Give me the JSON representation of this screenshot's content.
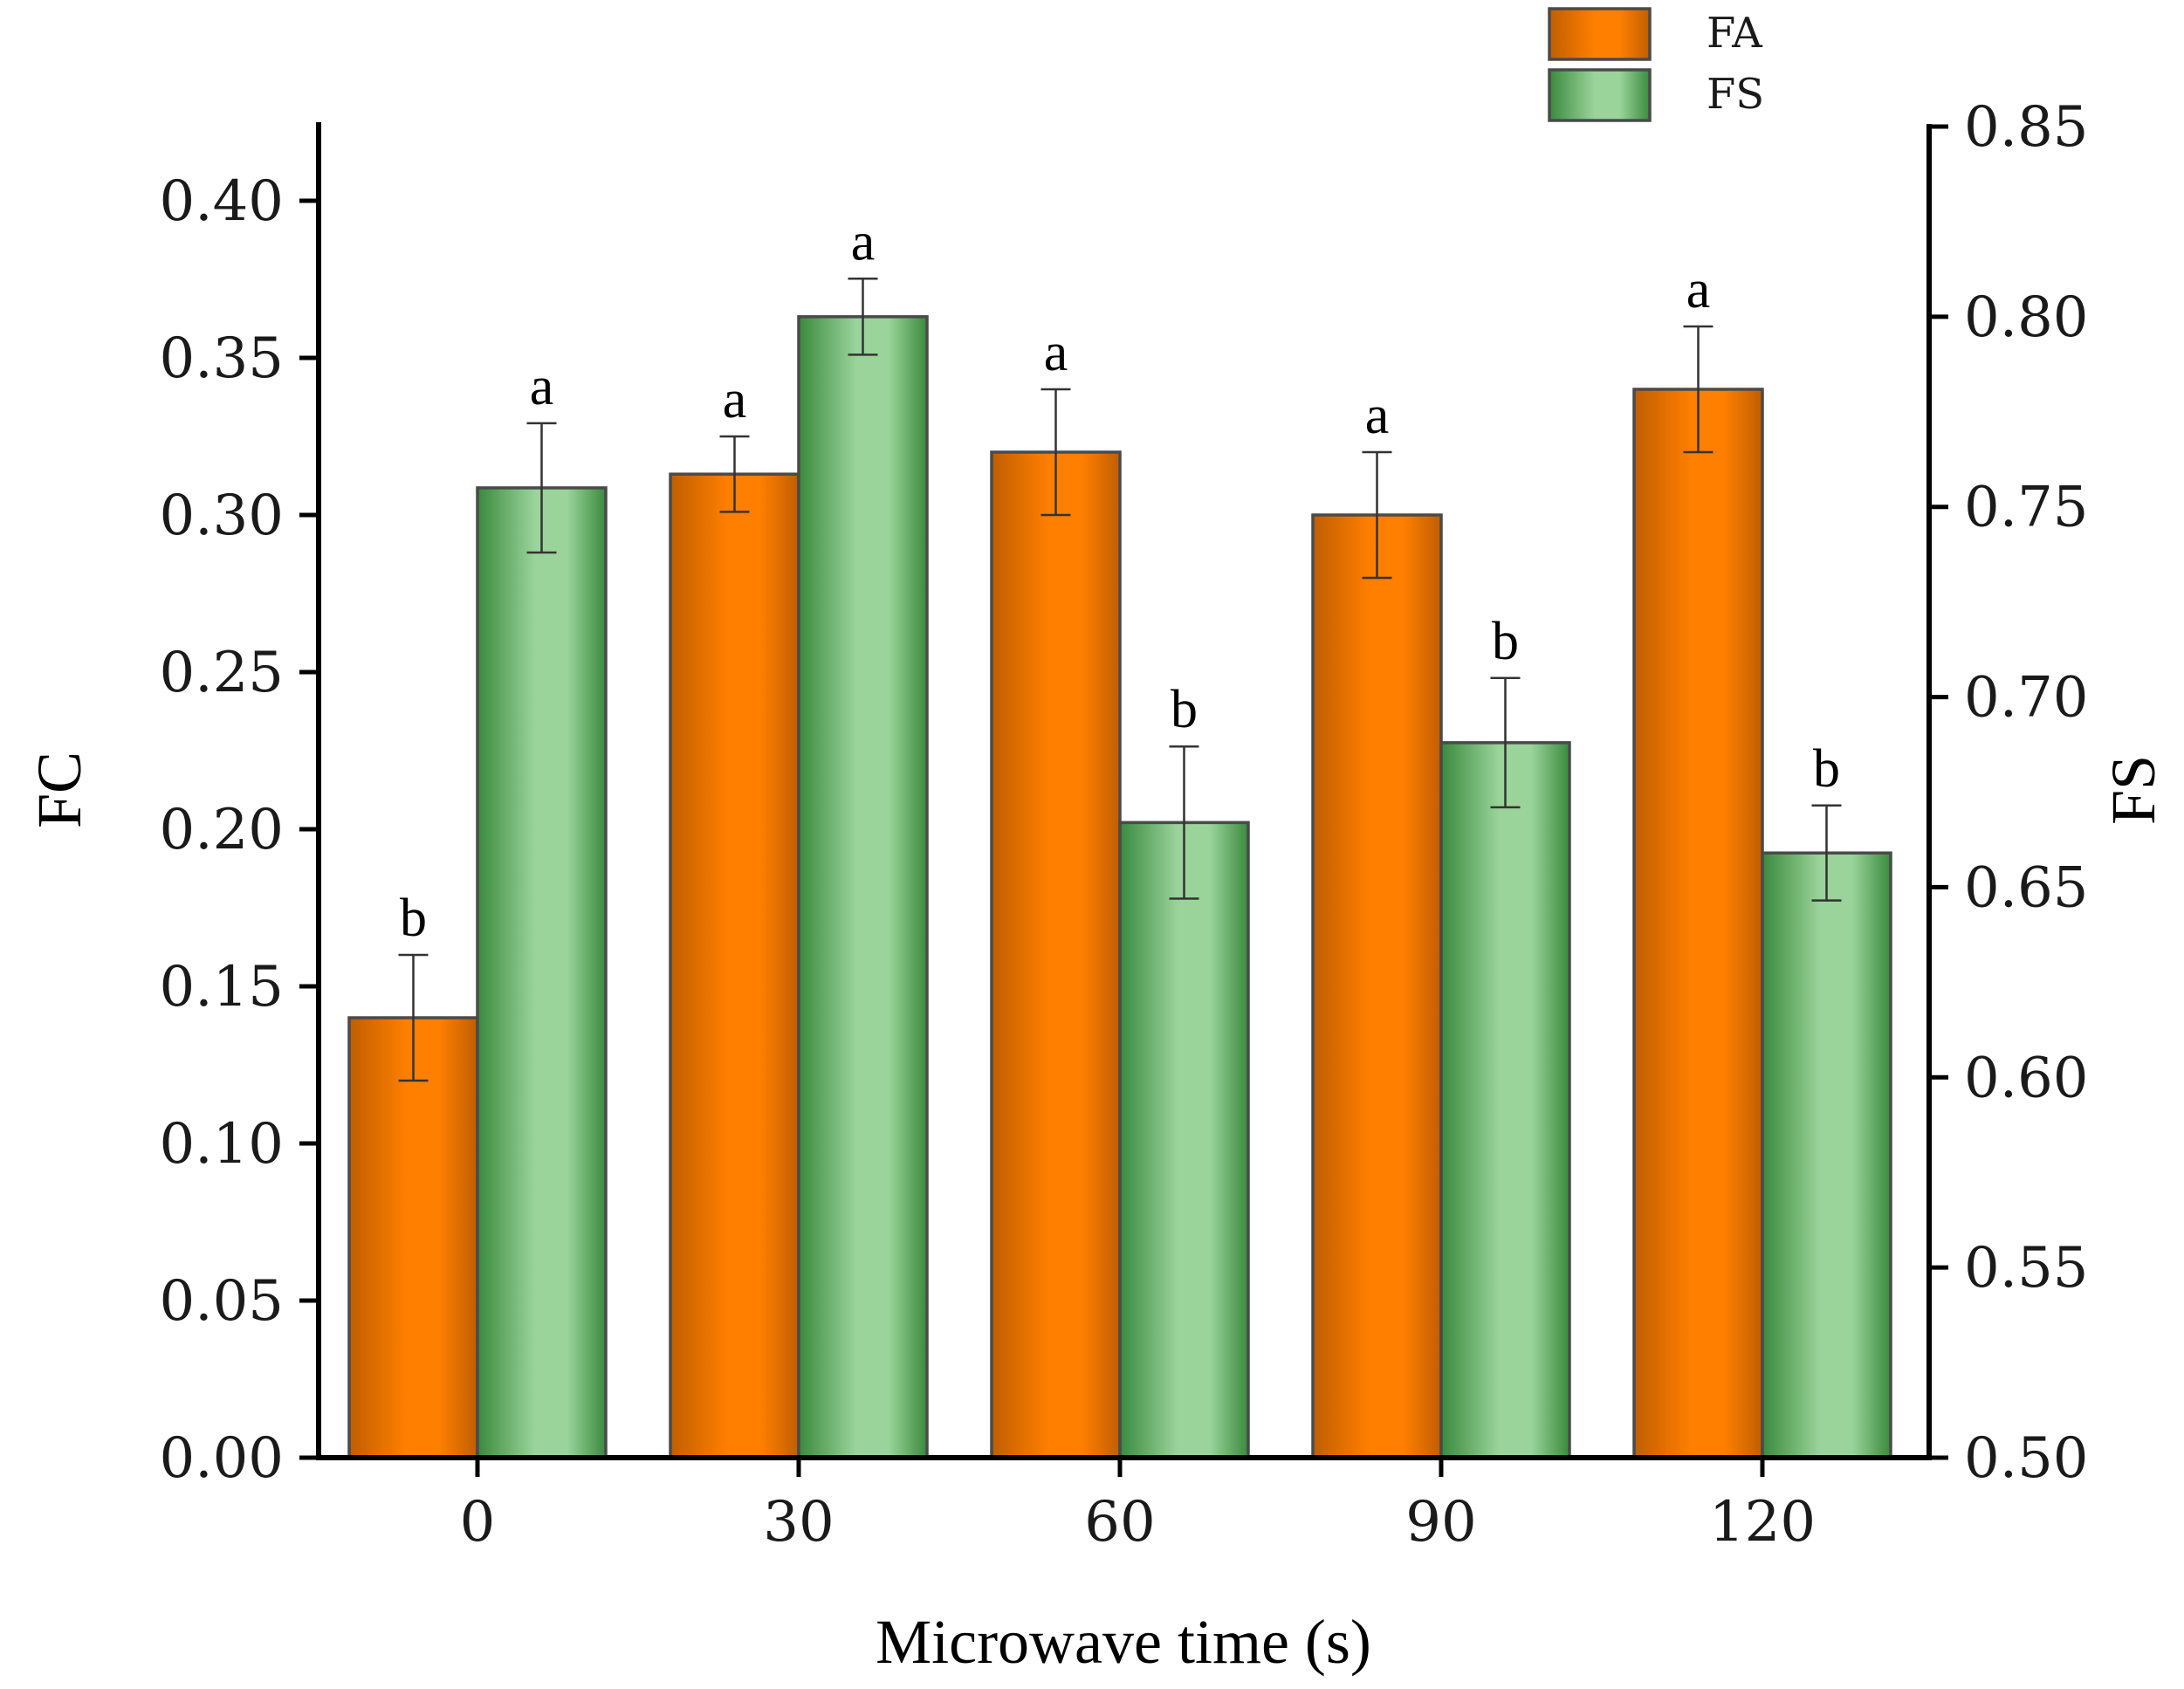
{
  "chart_data": {
    "type": "bar",
    "xlabel": "Microwave time (s)",
    "ylabel_left": "FC",
    "ylabel_right": "FS",
    "categories": [
      "0",
      "30",
      "60",
      "90",
      "120"
    ],
    "left_axis": {
      "ylim": [
        0.0,
        0.425
      ],
      "ticks": [
        0.0,
        0.05,
        0.1,
        0.15,
        0.2,
        0.25,
        0.3,
        0.35,
        0.4
      ],
      "tick_labels": [
        "0.00",
        "0.05",
        "0.10",
        "0.15",
        "0.20",
        "0.25",
        "0.30",
        "0.35",
        "0.40"
      ]
    },
    "right_axis": {
      "ylim": [
        0.5,
        0.85
      ],
      "ticks": [
        0.5,
        0.55,
        0.6,
        0.65,
        0.7,
        0.75,
        0.8,
        0.85
      ],
      "tick_labels": [
        "0.50",
        "0.55",
        "0.60",
        "0.65",
        "0.70",
        "0.75",
        "0.80",
        "0.85"
      ]
    },
    "series": [
      {
        "name": "FA",
        "axis": "left",
        "color": "#FF7F00",
        "color_dark": "#C05E00",
        "values": [
          0.14,
          0.313,
          0.32,
          0.3,
          0.34
        ],
        "errors": [
          0.02,
          0.012,
          0.02,
          0.02,
          0.02
        ],
        "significance": [
          "b",
          "a",
          "a",
          "a",
          "a"
        ]
      },
      {
        "name": "FS",
        "axis": "right",
        "color": "#9AD49A",
        "color_dark": "#3A8A3E",
        "values": [
          0.755,
          0.8,
          0.667,
          0.688,
          0.659
        ],
        "errors": [
          0.017,
          0.01,
          0.02,
          0.017,
          0.0125
        ],
        "significance": [
          "a",
          "a",
          "b",
          "b",
          "b"
        ]
      }
    ],
    "legend": {
      "position": "top-right",
      "entries": [
        "FA",
        "FS"
      ]
    }
  }
}
